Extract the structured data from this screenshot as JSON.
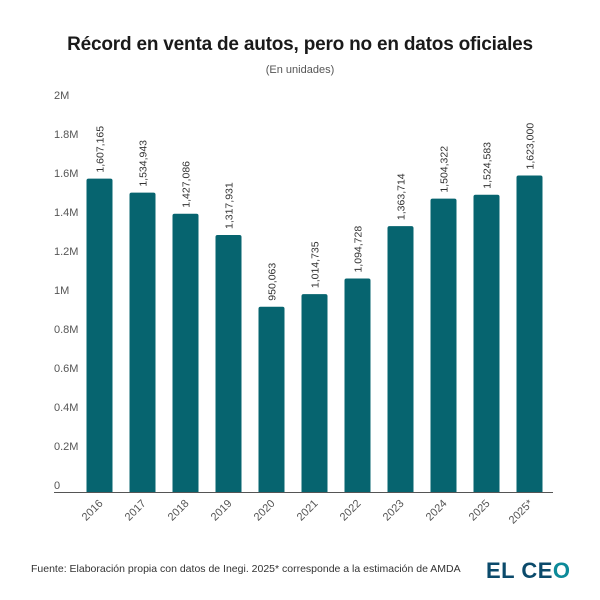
{
  "header": {
    "title": "Récord en venta de autos, pero no en datos oficiales",
    "subtitle": "(En unidades)"
  },
  "footer": {
    "source": "Fuente: Elaboración propia con datos de Inegi. 2025* corresponde a la estimación de AMDA",
    "logo_main": "EL CE",
    "logo_accent": "O"
  },
  "colors": {
    "bar": "#06646f",
    "axis": "#555555",
    "logo_dark": "#0b4a6b",
    "logo_accent": "#0d8a99"
  },
  "chart_data": {
    "type": "bar",
    "title": "Récord en venta de autos, pero no en datos oficiales",
    "subtitle": "(En unidades)",
    "xlabel": "",
    "ylabel": "",
    "ylim": [
      0,
      2000000
    ],
    "grid": false,
    "categories": [
      "2016",
      "2017",
      "2018",
      "2019",
      "2020",
      "2021",
      "2022",
      "2023",
      "2024",
      "2025",
      "2025*"
    ],
    "values": [
      1607165,
      1534943,
      1427086,
      1317931,
      950063,
      1014735,
      1094728,
      1363714,
      1504322,
      1524583,
      1623000
    ],
    "data_labels": [
      "1,607,165",
      "1,534,943",
      "1,427,086",
      "1,317,931",
      "950,063",
      "1,014,735",
      "1,094,728",
      "1,363,714",
      "1,504,322",
      "1,524,583",
      "1,623,000"
    ],
    "yticks": [
      0,
      200000,
      400000,
      600000,
      800000,
      1000000,
      1200000,
      1400000,
      1600000,
      1800000,
      2000000
    ],
    "ytick_labels": [
      "0",
      "0.2M",
      "0.4M",
      "0.6M",
      "0.8M",
      "1M",
      "1.2M",
      "1.4M",
      "1.6M",
      "1.8M",
      "2M"
    ],
    "legend": null
  }
}
